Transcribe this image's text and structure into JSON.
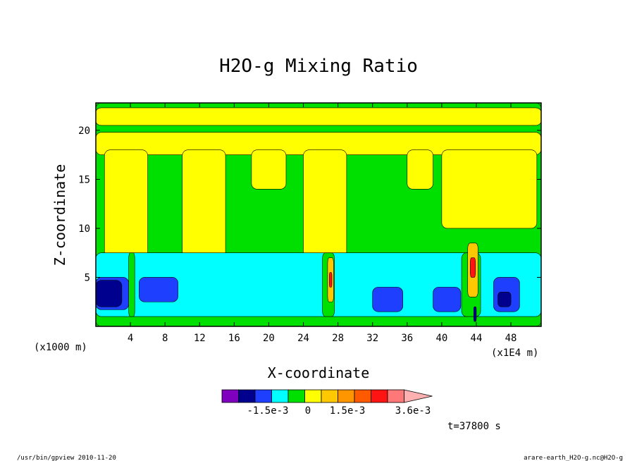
{
  "chart_data": {
    "type": "heatmap",
    "title": "H2O-g Mixing Ratio",
    "xlabel": "X-coordinate",
    "ylabel": "Z-coordinate",
    "x_units_left": "(x1000 m)",
    "x_units_right": "(x1E4 m)",
    "xlim": [
      0,
      51.5
    ],
    "ylim": [
      0,
      22.8
    ],
    "x_ticks": [
      4,
      8,
      12,
      16,
      20,
      24,
      28,
      32,
      36,
      40,
      44,
      48
    ],
    "x_tick_labels": [
      "4",
      "8",
      "12",
      "16",
      "20",
      "24",
      "28",
      "32",
      "36",
      "40",
      "44",
      "48"
    ],
    "y_ticks": [
      5,
      10,
      15,
      20
    ],
    "y_tick_labels": [
      "5",
      "10",
      "15",
      "20"
    ],
    "colorbar": {
      "colors": [
        "#7f00bf",
        "#00008f",
        "#1f3fff",
        "#00ffff",
        "#00e000",
        "#ffff00",
        "#ffc800",
        "#ff9600",
        "#ff5a00",
        "#ff1414",
        "#ff7878",
        "#ffb0b0"
      ],
      "tick_labels": [
        "-1.5e-3",
        "0",
        "1.5e-3",
        "3.6e-3"
      ],
      "open_end": "right"
    },
    "time_label": "t=37800 s",
    "cells": [
      {
        "level": "green",
        "x0": 0,
        "x1": 51.5,
        "z0": 0,
        "z1": 22.8
      },
      {
        "level": "yellow",
        "x0": 0,
        "x1": 51.5,
        "z0": 20.5,
        "z1": 22.3
      },
      {
        "level": "yellow",
        "x0": 0,
        "x1": 51.5,
        "z0": 17.5,
        "z1": 19.8
      },
      {
        "level": "yellow",
        "x0": 1,
        "x1": 6,
        "z0": 5,
        "z1": 18
      },
      {
        "level": "yellow",
        "x0": 10,
        "x1": 15,
        "z0": 7,
        "z1": 18
      },
      {
        "level": "yellow",
        "x0": 18,
        "x1": 22,
        "z0": 14,
        "z1": 18
      },
      {
        "level": "yellow",
        "x0": 24,
        "x1": 29,
        "z0": 2,
        "z1": 18
      },
      {
        "level": "yellow",
        "x0": 36,
        "x1": 39,
        "z0": 14,
        "z1": 18
      },
      {
        "level": "yellow",
        "x0": 40,
        "x1": 51,
        "z0": 10,
        "z1": 18
      },
      {
        "level": "cyan",
        "x0": 0,
        "x1": 51.5,
        "z0": 1,
        "z1": 7.5
      },
      {
        "level": "green",
        "x0": 3.8,
        "x1": 4.5,
        "z0": 1,
        "z1": 7.5
      },
      {
        "level": "green",
        "x0": 26.2,
        "x1": 27.6,
        "z0": 1,
        "z1": 7.5
      },
      {
        "level": "green",
        "x0": 42.3,
        "x1": 44.5,
        "z0": 1,
        "z1": 7.5
      },
      {
        "level": "blue",
        "x0": 0,
        "x1": 3.8,
        "z0": 1.7,
        "z1": 5
      },
      {
        "level": "blue",
        "x0": 5,
        "x1": 9.5,
        "z0": 2.5,
        "z1": 5
      },
      {
        "level": "blue",
        "x0": 32,
        "x1": 35.5,
        "z0": 1.5,
        "z1": 4
      },
      {
        "level": "blue",
        "x0": 39,
        "x1": 42.2,
        "z0": 1.5,
        "z1": 4
      },
      {
        "level": "blue",
        "x0": 46,
        "x1": 49,
        "z0": 1.5,
        "z1": 5
      },
      {
        "level": "navy",
        "x0": 0,
        "x1": 3,
        "z0": 2,
        "z1": 4.7
      },
      {
        "level": "navy",
        "x0": 46.5,
        "x1": 48,
        "z0": 2,
        "z1": 3.5
      },
      {
        "level": "orange",
        "x0": 26.8,
        "x1": 27.5,
        "z0": 2.5,
        "z1": 7
      },
      {
        "level": "red",
        "x0": 27,
        "x1": 27.3,
        "z0": 4,
        "z1": 5.5
      },
      {
        "level": "orange",
        "x0": 43,
        "x1": 44.2,
        "z0": 3,
        "z1": 8.5
      },
      {
        "level": "red",
        "x0": 43.3,
        "x1": 43.9,
        "z0": 5,
        "z1": 7
      },
      {
        "level": "navy",
        "x0": 43.7,
        "x1": 44,
        "z0": 0.5,
        "z1": 2
      }
    ]
  },
  "footer": {
    "left": "/usr/bin/gpview  2010-11-20",
    "right": "arare-earth_H2O-g.nc@H2O-g"
  },
  "palette": {
    "green": "#00e000",
    "yellow": "#ffff00",
    "cyan": "#00ffff",
    "blue": "#1f3fff",
    "navy": "#00008f",
    "orange": "#ffc800",
    "red": "#ff1414"
  }
}
